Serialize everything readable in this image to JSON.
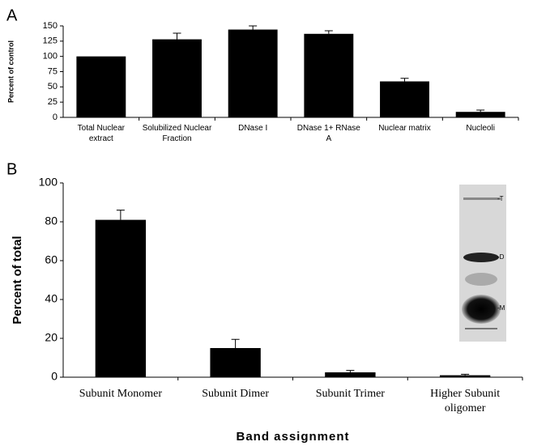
{
  "chart_data": [
    {
      "type": "bar",
      "panel": "A",
      "ylabel": "Percent of control",
      "categories": [
        "Total Nuclear extract",
        "Solubilized Nuclear Fraction",
        "DNase I",
        "DNase 1+ RNase A",
        "Nuclear matrix",
        "Nucleoli"
      ],
      "values": [
        100,
        128,
        144,
        137,
        59,
        9
      ],
      "errors": [
        null,
        10,
        6,
        5,
        5,
        3
      ],
      "color": "#000000",
      "ylim": [
        0,
        150
      ],
      "yticks": [
        0,
        25,
        50,
        75,
        100,
        125,
        150
      ]
    },
    {
      "type": "bar",
      "panel": "B",
      "ylabel": "Percent of total",
      "xlabel": "Band assignment",
      "categories": [
        "Subunit Monomer",
        "Subunit Dimer",
        "Subunit Trimer",
        "Higher Subunit oligomer"
      ],
      "values": [
        81,
        15,
        2.5,
        1
      ],
      "errors": [
        5,
        4.5,
        1,
        0.5
      ],
      "color": "#000000",
      "ylim": [
        0,
        100
      ],
      "yticks": [
        0,
        20,
        40,
        60,
        80,
        100
      ],
      "inset_labels": [
        "-T",
        "-D",
        "-M"
      ]
    }
  ]
}
